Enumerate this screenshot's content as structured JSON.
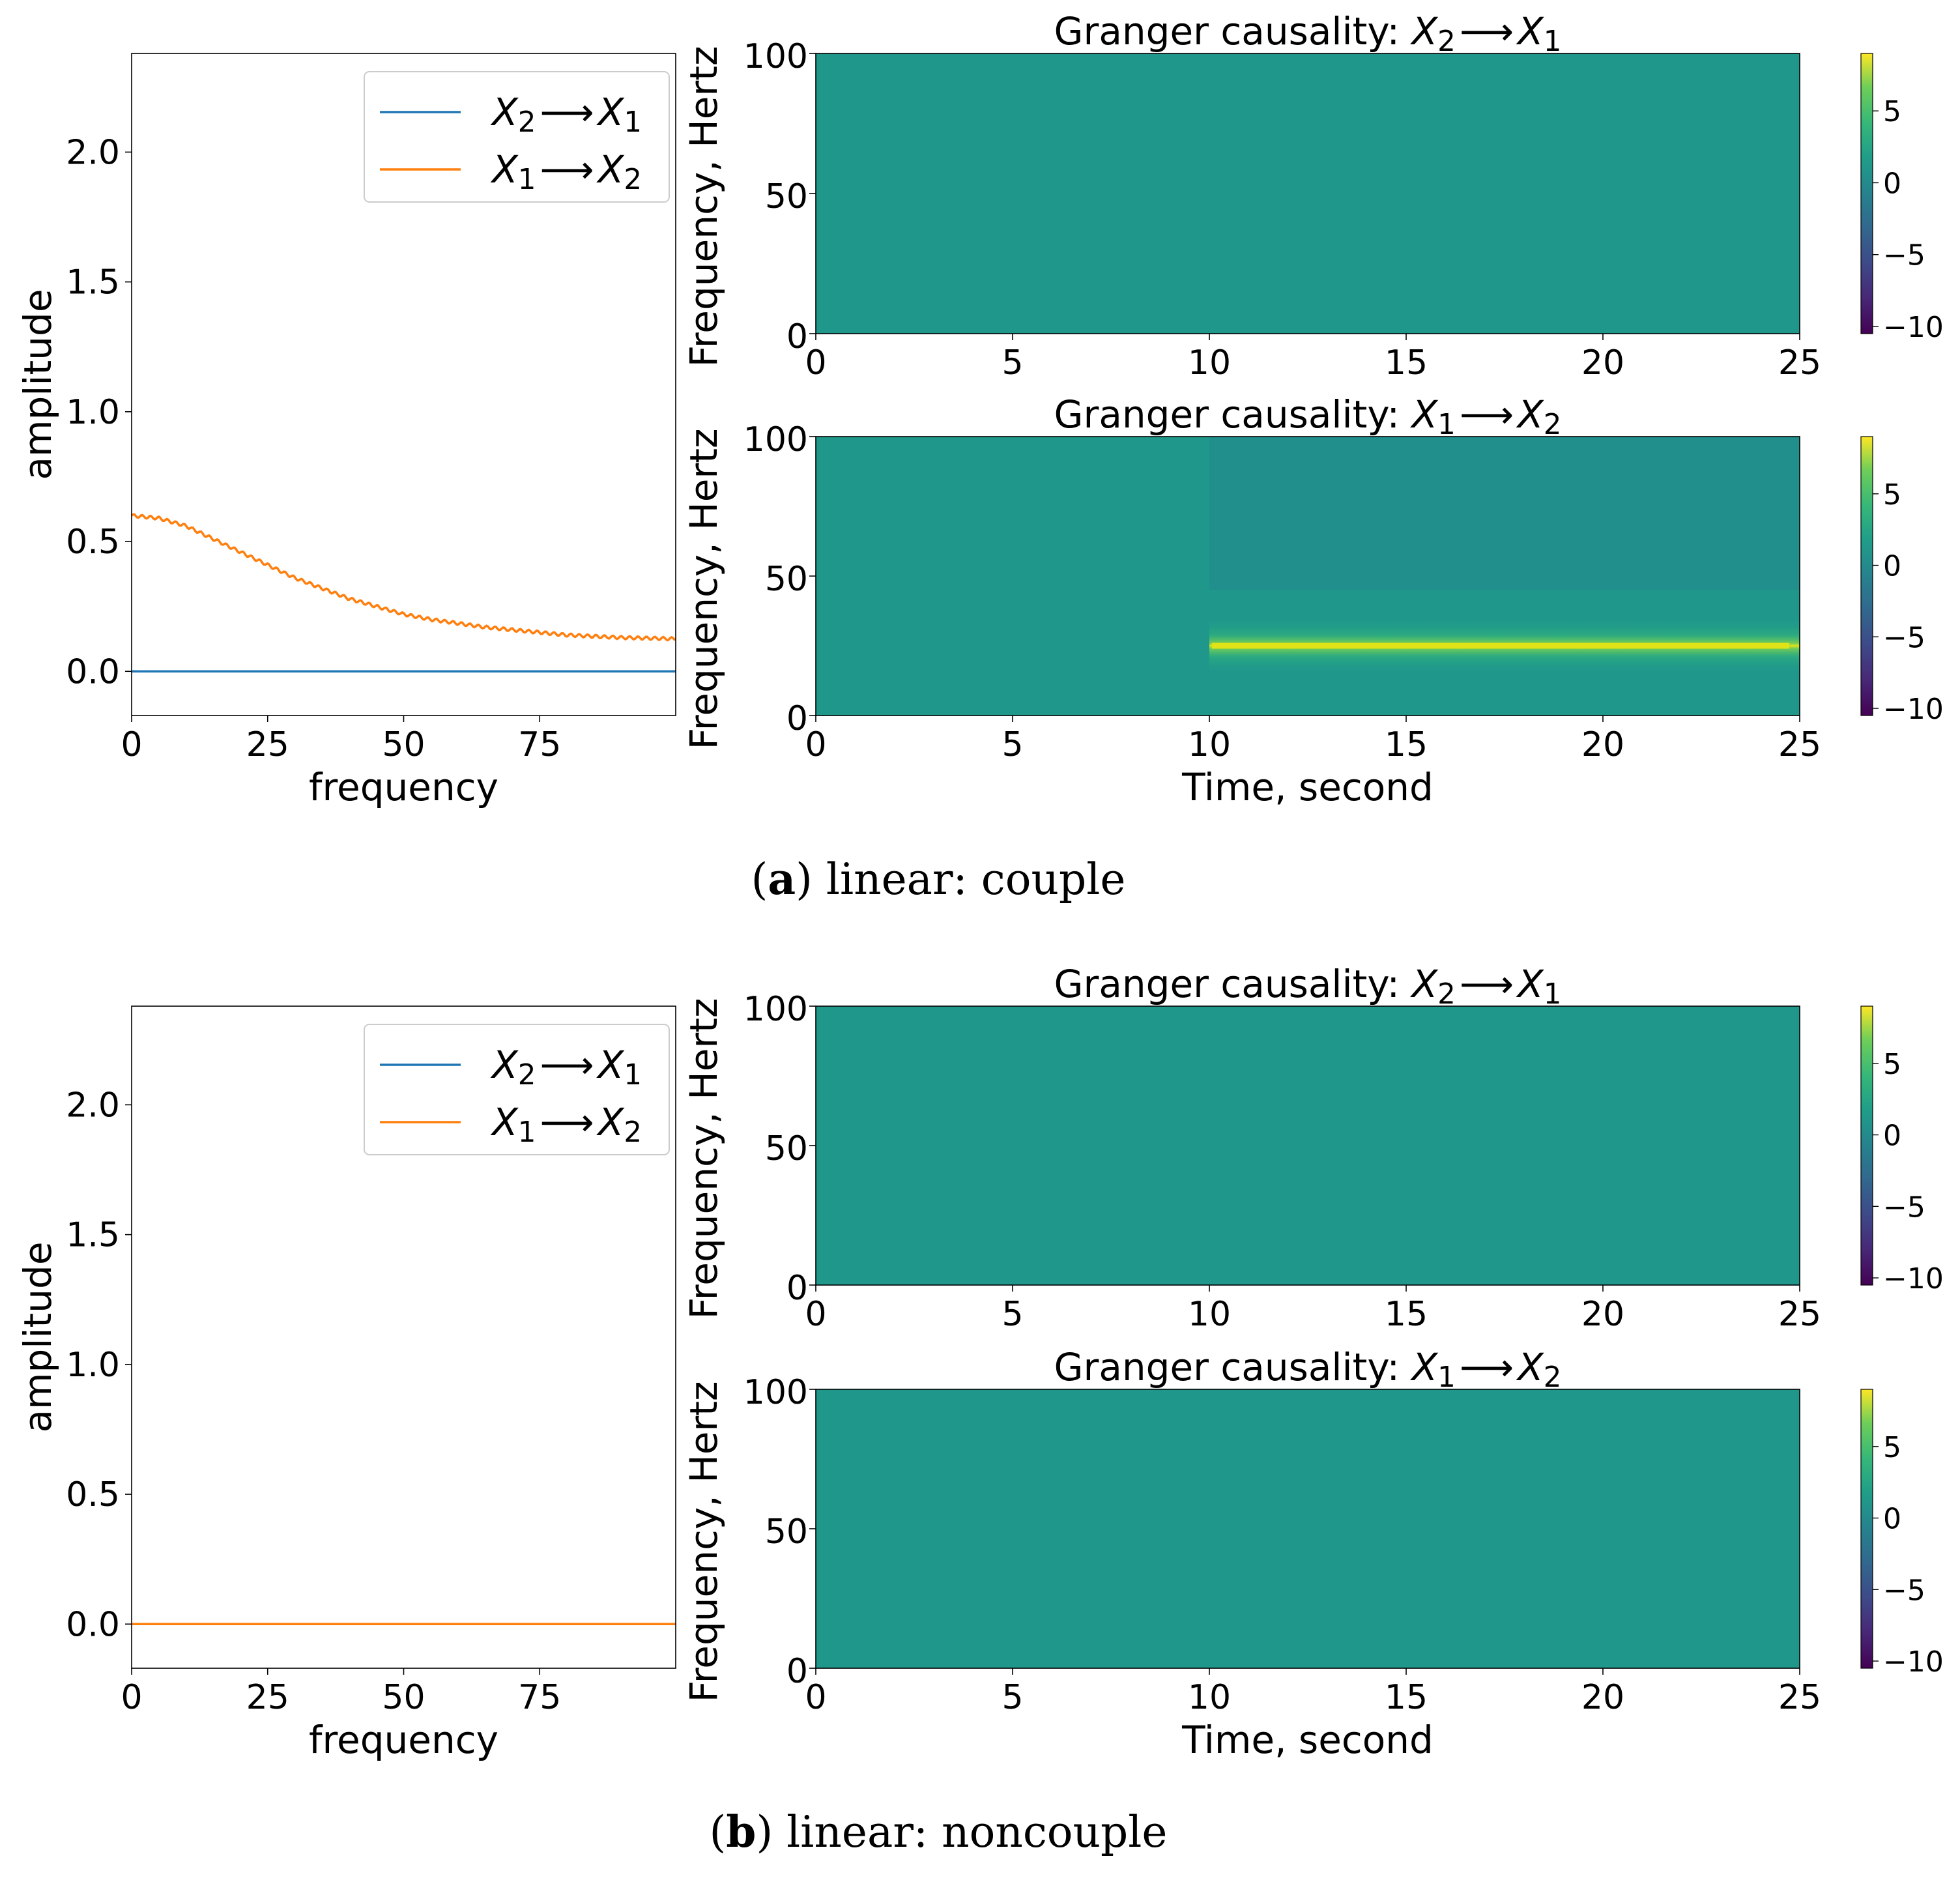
{
  "colors": {
    "blue": "#1f77b4",
    "orange": "#ff7f0e",
    "background_field": "#1f988b",
    "upper_block": "#23898e",
    "band_core": "#dfe318",
    "band_halo": "#7ad151"
  },
  "captions": [
    {
      "label": "a",
      "text": ") linear: couple",
      "open": "("
    },
    {
      "label": "b",
      "text": ") linear: noncouple",
      "open": "("
    }
  ],
  "chart_data": [
    {
      "id": "a-line",
      "type": "line",
      "xlabel": "frequency",
      "ylabel": "amplitude",
      "xlim": [
        0,
        100
      ],
      "ylim": [
        -0.17,
        2.38
      ],
      "xticks": [
        "0",
        "25",
        "50",
        "75"
      ],
      "yticks": [
        "0.0",
        "0.5",
        "1.0",
        "1.5",
        "2.0"
      ],
      "legend_placement": "top-right",
      "series": [
        {
          "name": "X2 ⟶ X1",
          "legend_sub": [
            "2",
            "1"
          ],
          "color": "#1f77b4",
          "x": [
            0,
            100
          ],
          "y": [
            0,
            0
          ]
        },
        {
          "name": "X1 ⟶ X2",
          "legend_sub": [
            "1",
            "2"
          ],
          "color": "#ff7f0e",
          "x": [
            0,
            5,
            10,
            15,
            20,
            25,
            30,
            35,
            40,
            45,
            50,
            55,
            60,
            65,
            70,
            75,
            80,
            85,
            90,
            95,
            100
          ],
          "y": [
            0.6,
            0.59,
            0.56,
            0.51,
            0.46,
            0.41,
            0.36,
            0.32,
            0.28,
            0.25,
            0.22,
            0.2,
            0.185,
            0.17,
            0.16,
            0.15,
            0.14,
            0.135,
            0.13,
            0.128,
            0.125
          ]
        }
      ]
    },
    {
      "id": "a-heat-top",
      "type": "heatmap",
      "title": "Granger causality: ",
      "title_vars": [
        "2",
        "1"
      ],
      "xlabel": "",
      "ylabel": "Frequency, Hertz",
      "xlim": [
        0,
        25
      ],
      "ylim": [
        0,
        100
      ],
      "xticks": [
        "0",
        "5",
        "10",
        "15",
        "20",
        "25"
      ],
      "yticks": [
        "0",
        "50",
        "100"
      ],
      "colorbar_ticks": [
        "5",
        "0",
        "−5",
        "−10"
      ],
      "colorbar_range": [
        -10.5,
        9
      ],
      "base_value": 0.2,
      "band": null,
      "upper_block": null
    },
    {
      "id": "a-heat-bottom",
      "type": "heatmap",
      "title": "Granger causality: ",
      "title_vars": [
        "1",
        "2"
      ],
      "xlabel": "Time, second",
      "ylabel": "Frequency, Hertz",
      "xlim": [
        0,
        25
      ],
      "ylim": [
        0,
        100
      ],
      "xticks": [
        "0",
        "5",
        "10",
        "15",
        "20",
        "25"
      ],
      "yticks": [
        "0",
        "50",
        "100"
      ],
      "colorbar_ticks": [
        "5",
        "0",
        "−5",
        "−10"
      ],
      "colorbar_range": [
        -10.5,
        9
      ],
      "base_value": 0.2,
      "band": {
        "t_start": 10,
        "t_end": 25,
        "freq_center": 25,
        "freq_halfwidth": 10,
        "peak_value": 8
      },
      "upper_block": {
        "t_start": 10,
        "t_end": 25,
        "freq_from": 45,
        "freq_to": 100,
        "value": -1.5
      }
    },
    {
      "id": "b-line",
      "type": "line",
      "xlabel": "frequency",
      "ylabel": "amplitude",
      "xlim": [
        0,
        100
      ],
      "ylim": [
        -0.17,
        2.38
      ],
      "xticks": [
        "0",
        "25",
        "50",
        "75"
      ],
      "yticks": [
        "0.0",
        "0.5",
        "1.0",
        "1.5",
        "2.0"
      ],
      "legend_placement": "top-right",
      "series": [
        {
          "name": "X2 ⟶ X1",
          "legend_sub": [
            "2",
            "1"
          ],
          "color": "#1f77b4",
          "x": [
            0,
            100
          ],
          "y": [
            0,
            0
          ]
        },
        {
          "name": "X1 ⟶ X2",
          "legend_sub": [
            "1",
            "2"
          ],
          "color": "#ff7f0e",
          "x": [
            0,
            100
          ],
          "y": [
            0,
            0
          ]
        }
      ]
    },
    {
      "id": "b-heat-top",
      "type": "heatmap",
      "title": "Granger causality: ",
      "title_vars": [
        "2",
        "1"
      ],
      "xlabel": "",
      "ylabel": "Frequency, Hertz",
      "xlim": [
        0,
        25
      ],
      "ylim": [
        0,
        100
      ],
      "xticks": [
        "0",
        "5",
        "10",
        "15",
        "20",
        "25"
      ],
      "yticks": [
        "0",
        "50",
        "100"
      ],
      "colorbar_ticks": [
        "5",
        "0",
        "−5",
        "−10"
      ],
      "colorbar_range": [
        -10.5,
        9
      ],
      "base_value": 0.2,
      "band": null,
      "upper_block": null
    },
    {
      "id": "b-heat-bottom",
      "type": "heatmap",
      "title": "Granger causality: ",
      "title_vars": [
        "1",
        "2"
      ],
      "xlabel": "Time, second",
      "ylabel": "Frequency, Hertz",
      "xlim": [
        0,
        25
      ],
      "ylim": [
        0,
        100
      ],
      "xticks": [
        "0",
        "5",
        "10",
        "15",
        "20",
        "25"
      ],
      "yticks": [
        "0",
        "50",
        "100"
      ],
      "colorbar_ticks": [
        "5",
        "0",
        "−5",
        "−10"
      ],
      "colorbar_range": [
        -10.5,
        9
      ],
      "base_value": 0.2,
      "band": null,
      "upper_block": null
    }
  ]
}
